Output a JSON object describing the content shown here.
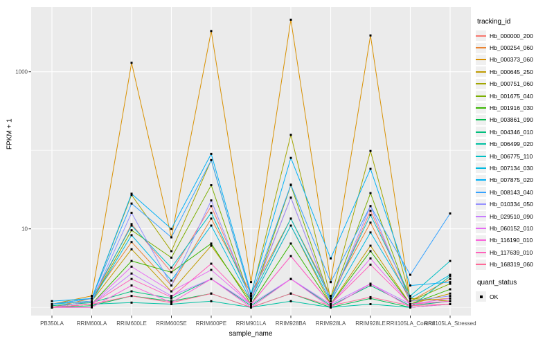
{
  "figure": {
    "legend": {
      "tracking_title": "tracking_id",
      "quant_title": "quant_status",
      "quant_items": [
        {
          "label": "OK",
          "marker": "black-square"
        }
      ]
    },
    "colors": {
      "panel_bg": "#EBEBEB",
      "grid_major": "#FFFFFF",
      "grid_minor": "#FFFFFF",
      "tick_mark": "#333333",
      "tick_text": "#4D4D4D",
      "point": "#000000",
      "legend_key_bg": "#F0F0F0"
    }
  },
  "chart_data": {
    "type": "line",
    "title": "",
    "xlabel": "sample_name",
    "ylabel": "FPKM + 1",
    "y_scale": "log10",
    "ylim": [
      1,
      6000
    ],
    "y_major_ticks": [
      {
        "label": "10",
        "value": 10
      },
      {
        "label": "1000",
        "value": 1000
      }
    ],
    "y_minor_ticks": [
      1,
      100
    ],
    "grid": true,
    "legend_position": "right",
    "point_marker": "black-square",
    "categories": [
      "PB350LA",
      "RRIM600LA",
      "RRIM600LE",
      "RRIM600SE",
      "RRIM600PE",
      "RRIM901LA",
      "RRIM928BA",
      "RRIM928LA",
      "RRIM928LE",
      "RRII105LA_Control",
      "RRII105LA_Stressed"
    ],
    "series": [
      {
        "name": "Hb_000000_200",
        "color": "#F8766D",
        "values": [
          1.1,
          1.2,
          11.5,
          2.8,
          19.5,
          1.3,
          25,
          1.2,
          17,
          1.3,
          1.2
        ]
      },
      {
        "name": "Hb_000254_060",
        "color": "#EA8331",
        "values": [
          1.0,
          1.3,
          6.8,
          1.9,
          13.5,
          1.5,
          13.5,
          1.4,
          12,
          1.2,
          2.3
        ]
      },
      {
        "name": "Hb_000373_060",
        "color": "#D89000",
        "values": [
          1.1,
          1.4,
          1300,
          7.8,
          3300,
          2.1,
          4600,
          2.1,
          2900,
          1.2,
          1.3
        ]
      },
      {
        "name": "Hb_000645_250",
        "color": "#C09B00",
        "values": [
          1.0,
          1.2,
          5.5,
          1.6,
          6.1,
          1.2,
          11,
          1.1,
          6.1,
          1.1,
          1.5
        ]
      },
      {
        "name": "Hb_000751_060",
        "color": "#A3A500",
        "values": [
          1.1,
          1.3,
          27,
          5.2,
          75,
          1.4,
          157,
          1.3,
          98,
          1.3,
          1.2
        ]
      },
      {
        "name": "Hb_001675_040",
        "color": "#7CAE00",
        "values": [
          1.0,
          1.2,
          9.6,
          4.3,
          36,
          1.2,
          36,
          1.2,
          28.5,
          1.2,
          2.0
        ]
      },
      {
        "name": "Hb_001916_030",
        "color": "#39B600",
        "values": [
          1.0,
          1.1,
          3.9,
          2.8,
          6.5,
          1.1,
          6.5,
          1.1,
          5.2,
          1.1,
          1.7
        ]
      },
      {
        "name": "Hb_003861_090",
        "color": "#00BB4E",
        "values": [
          1.0,
          1.05,
          1.4,
          1.2,
          1.5,
          1.0,
          1.5,
          1.0,
          1.3,
          1.0,
          1.1
        ]
      },
      {
        "name": "Hb_004346_010",
        "color": "#00BF7D",
        "values": [
          1.05,
          1.15,
          1.6,
          1.3,
          2.3,
          1.05,
          2.3,
          1.05,
          1.9,
          1.05,
          1.2
        ]
      },
      {
        "name": "Hb_006499_020",
        "color": "#00C1A3",
        "values": [
          1.0,
          1.1,
          1.15,
          1.1,
          1.2,
          1.0,
          1.2,
          1.0,
          1.1,
          1.0,
          2.5
        ]
      },
      {
        "name": "Hb_006775_110",
        "color": "#00BFC4",
        "values": [
          1.1,
          1.3,
          11,
          3.2,
          16,
          1.3,
          13.5,
          1.3,
          15,
          1.4,
          3.9
        ]
      },
      {
        "name": "Hb_007134_030",
        "color": "#00BAE0",
        "values": [
          1.1,
          1.2,
          8.3,
          2.2,
          11,
          1.2,
          11,
          1.2,
          9,
          1.3,
          2.6
        ]
      },
      {
        "name": "Hb_007875_020",
        "color": "#00B0F6",
        "values": [
          1.2,
          1.3,
          28,
          10,
          90,
          1.5,
          80,
          4.2,
          58,
          1.9,
          2.1
        ]
      },
      {
        "name": "Hb_008143_040",
        "color": "#35A2FF",
        "values": [
          1.1,
          1.3,
          21,
          7.8,
          75,
          1.4,
          36.5,
          2.1,
          19.5,
          2.6,
          15.7
        ]
      },
      {
        "name": "Hb_010334_050",
        "color": "#9590FF",
        "values": [
          1.0,
          1.2,
          16,
          1.9,
          23,
          1.25,
          25,
          1.2,
          19.5,
          1.2,
          1.4
        ]
      },
      {
        "name": "Hb_029510_090",
        "color": "#C77CFF",
        "values": [
          1.0,
          1.1,
          2.7,
          1.4,
          2.3,
          1.1,
          2.3,
          1.1,
          2.0,
          1.1,
          1.2
        ]
      },
      {
        "name": "Hb_060152_010",
        "color": "#E76BF3",
        "values": [
          1.0,
          1.1,
          3.3,
          1.6,
          3.0,
          1.1,
          4.5,
          1.1,
          4.2,
          1.1,
          1.3
        ]
      },
      {
        "name": "Hb_116190_010",
        "color": "#FA62DB",
        "values": [
          1.0,
          1.0,
          1.9,
          1.15,
          2.3,
          1.0,
          2.3,
          1.0,
          2.0,
          1.0,
          1.1
        ]
      },
      {
        "name": "Hb_117639_010",
        "color": "#FF62BC",
        "values": [
          1.0,
          1.1,
          2.3,
          1.35,
          3.6,
          1.1,
          4.5,
          1.1,
          3.5,
          1.1,
          1.2
        ]
      },
      {
        "name": "Hb_168319_060",
        "color": "#FF6A98",
        "values": [
          1.0,
          1.1,
          1.4,
          1.15,
          1.5,
          1.0,
          1.5,
          1.05,
          1.35,
          1.05,
          1.1
        ]
      }
    ]
  }
}
